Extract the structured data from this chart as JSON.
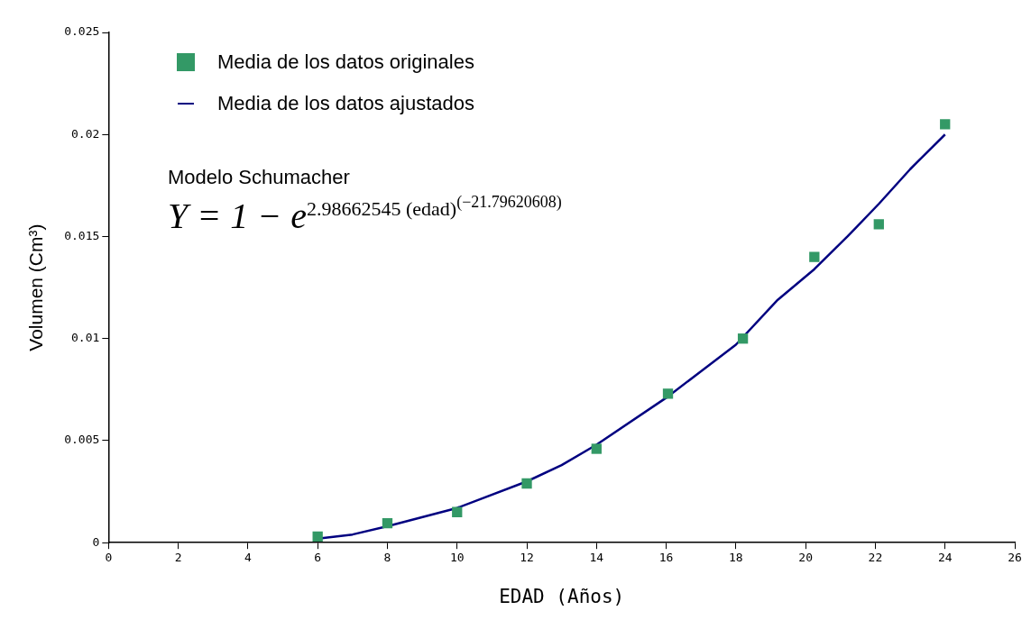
{
  "chart_data": {
    "type": "scatter",
    "xlabel": "EDAD (Años)",
    "ylabel": "Volumen (Cm³)",
    "xlim": [
      0,
      26
    ],
    "xticks": [
      0,
      2,
      4,
      6,
      8,
      10,
      12,
      14,
      16,
      18,
      20,
      22,
      24,
      26
    ],
    "ylim": [
      0,
      0.025
    ],
    "yticks": [
      0,
      0.005,
      0.01,
      0.015,
      0.02,
      0.025
    ],
    "grid": false,
    "legend": "top left",
    "annotations": [
      "Modelo Schumacher",
      "Y = 1 − e$^{2.98662545 (edad)}$$^{(−21.79620608)}$"
    ],
    "series": [
      {
        "name": "Media de los datos originales",
        "type": "scatter",
        "marker": "square",
        "color": "#339966",
        "x": [
          6,
          8,
          10,
          12,
          14,
          16.05,
          18.2,
          20.25,
          22.1,
          24
        ],
        "values": [
          0.0003,
          0.00095,
          0.0015,
          0.0029,
          0.0046,
          0.0073,
          0.01,
          0.014,
          0.0156,
          0.0205
        ]
      },
      {
        "name": "Media de los datos ajustados",
        "type": "line",
        "marker": "none",
        "color": "#000080",
        "x": [
          6,
          7,
          8,
          10,
          12,
          13,
          14,
          16,
          17,
          18,
          19.2,
          20.25,
          21.2,
          22.1,
          23,
          24
        ],
        "values": [
          0.0002,
          0.0004,
          0.0008,
          0.0017,
          0.003,
          0.0038,
          0.0048,
          0.0071,
          0.0084,
          0.0097,
          0.0119,
          0.0134,
          0.015,
          0.0166,
          0.0183,
          0.02
        ]
      }
    ]
  }
}
